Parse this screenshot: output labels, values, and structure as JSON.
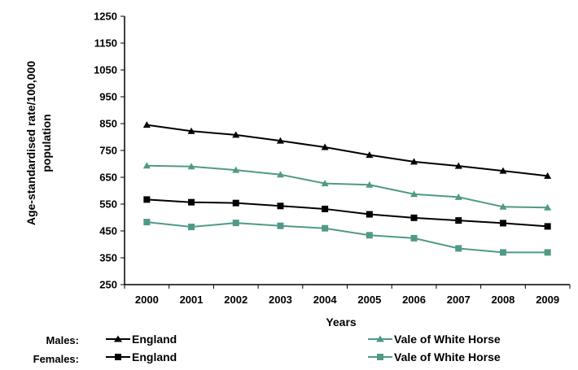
{
  "chart_data": {
    "type": "line",
    "title": "",
    "xlabel": "Years",
    "ylabel_lines": [
      "Age-standardised rate/100,000",
      "population"
    ],
    "categories": [
      "2000",
      "2001",
      "2002",
      "2003",
      "2004",
      "2005",
      "2006",
      "2007",
      "2008",
      "2009"
    ],
    "ylim": [
      250,
      1250
    ],
    "yticks": [
      250,
      350,
      450,
      550,
      650,
      750,
      850,
      950,
      1050,
      1150,
      1250
    ],
    "grid": false,
    "legend_placement": "bottom",
    "series": [
      {
        "name": "England",
        "group": "Males",
        "marker": "triangle",
        "color": "#000000",
        "values": [
          845,
          822,
          808,
          786,
          762,
          733,
          708,
          692,
          674,
          655
        ]
      },
      {
        "name": "Vale of White Horse",
        "group": "Males",
        "marker": "triangle",
        "color": "#4f9a87",
        "values": [
          693,
          690,
          677,
          660,
          627,
          622,
          587,
          576,
          540,
          537
        ]
      },
      {
        "name": "England",
        "group": "Females",
        "marker": "square",
        "color": "#000000",
        "values": [
          567,
          557,
          554,
          543,
          532,
          512,
          499,
          489,
          479,
          467
        ]
      },
      {
        "name": "Vale of White Horse",
        "group": "Females",
        "marker": "square",
        "color": "#4f9a87",
        "values": [
          483,
          465,
          480,
          469,
          460,
          434,
          423,
          385,
          370,
          370
        ]
      }
    ]
  },
  "legend": {
    "males_label": "Males:",
    "females_label": "Females:",
    "england_label": "England",
    "vowh_label": "Vale of White Horse"
  }
}
